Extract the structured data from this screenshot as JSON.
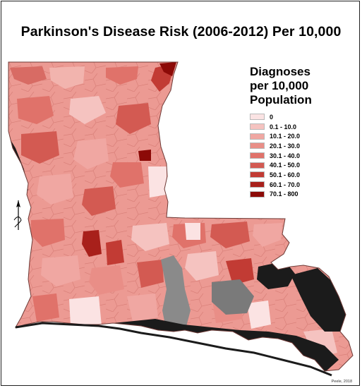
{
  "title": "Parkinson's Disease Risk (2006-2012) Per 10,000",
  "legend": {
    "title_lines": [
      "Diagnoses",
      "per 10,000",
      "Population"
    ],
    "items": [
      {
        "label": "0",
        "color": "#fbe3e3"
      },
      {
        "label": "0.1 - 10.0",
        "color": "#f5c3c0"
      },
      {
        "label": "10.1 - 20.0",
        "color": "#f0a7a2"
      },
      {
        "label": "20.1 - 30.0",
        "color": "#e98e87"
      },
      {
        "label": "30.1 - 40.0",
        "color": "#e0726a"
      },
      {
        "label": "40.1 - 50.0",
        "color": "#d35a52"
      },
      {
        "label": "50.1 - 60.0",
        "color": "#c23b34"
      },
      {
        "label": "60.1 - 70.0",
        "color": "#a8201b"
      },
      {
        "label": "70.1 - 800",
        "color": "#8c0a07"
      }
    ]
  },
  "credit": "Peele, 2018",
  "colors": {
    "water": "#1b1b1b",
    "marsh": "#8a8a8a",
    "background": "#ffffff"
  },
  "icons": {
    "north_arrow": "north-arrow-icon"
  }
}
